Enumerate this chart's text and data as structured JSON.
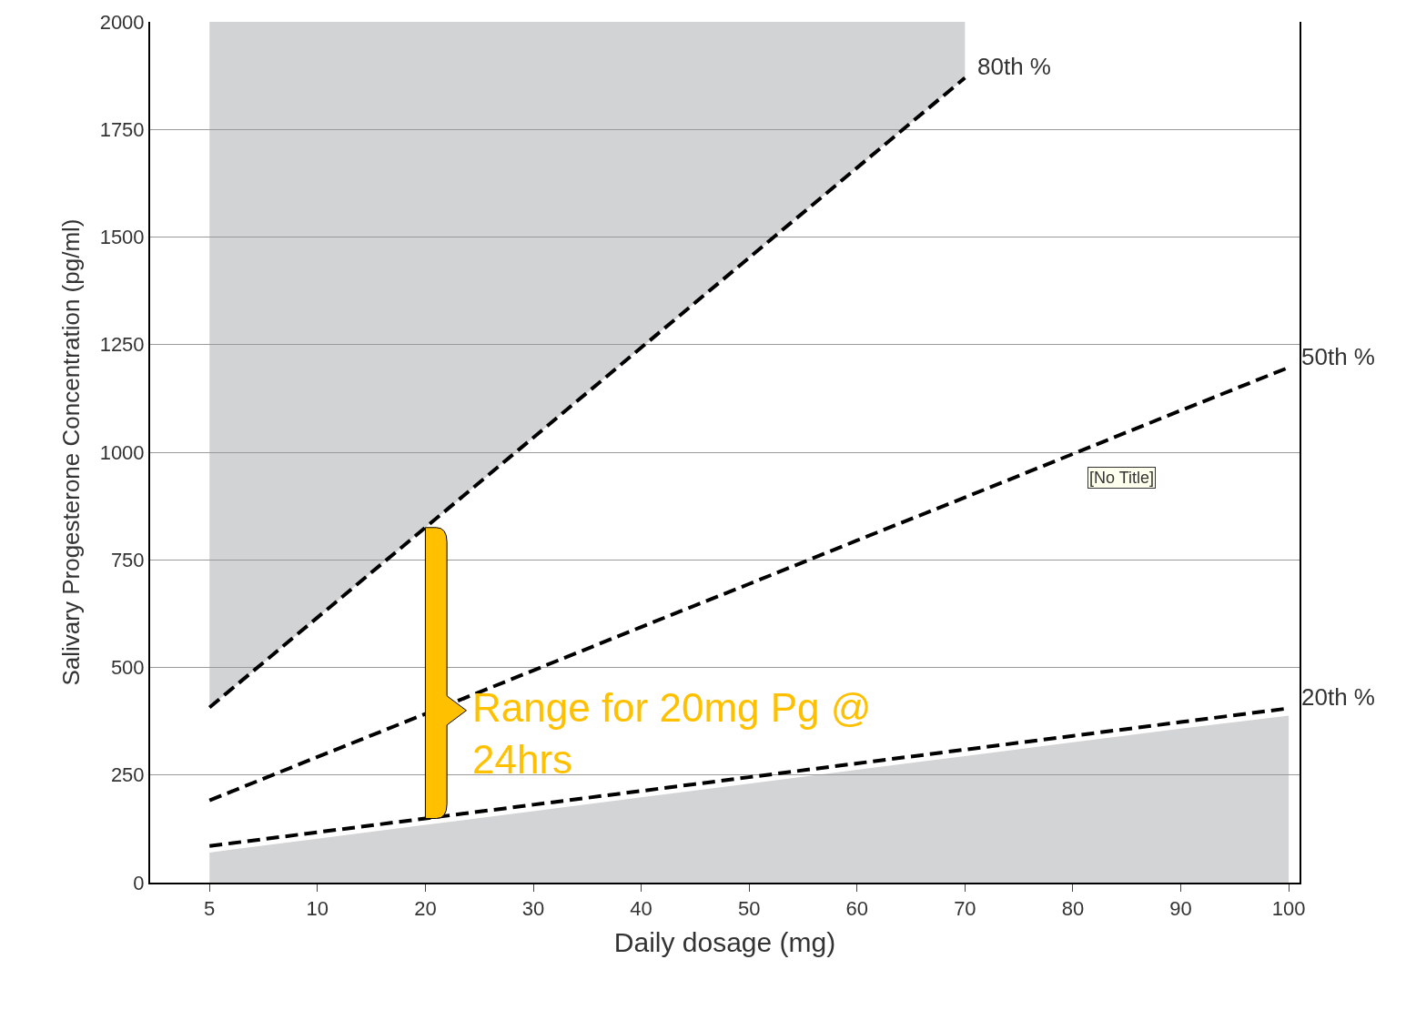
{
  "chart_data": {
    "type": "line",
    "xlabel": "Daily dosage (mg)",
    "ylabel": "Salivary Progesterone Concentration (pg/ml)",
    "categories": [
      "5",
      "10",
      "20",
      "30",
      "40",
      "50",
      "60",
      "70",
      "80",
      "90",
      "100"
    ],
    "ylim": [
      0,
      2000
    ],
    "yticks": [
      0,
      250,
      500,
      750,
      1000,
      1250,
      1500,
      1750,
      2000
    ],
    "grid": "y",
    "legend": false,
    "line_style": "dashed",
    "marker": "none",
    "series": [
      {
        "name": "80th %",
        "color": "#000000",
        "values": [
          407,
          616,
          825,
          1034,
          1243,
          1452,
          1661,
          1870,
          null,
          null,
          null
        ],
        "lower": [
          407,
          616,
          825,
          1034,
          1243,
          1452,
          1661,
          1870,
          null,
          null,
          null
        ],
        "upper": [
          2000,
          2000,
          2000,
          2000,
          2000,
          2000,
          2000,
          2000,
          null,
          null,
          null
        ]
      },
      {
        "name": "50th %",
        "color": "#000000",
        "values": [
          191,
          292,
          392,
          493,
          594,
          694,
          795,
          895,
          996,
          1097,
          1197
        ]
      },
      {
        "name": "20th %",
        "color": "#000000",
        "values": [
          85,
          117,
          149,
          181,
          213,
          245,
          277,
          309,
          341,
          373,
          405
        ],
        "lower": [
          0,
          0,
          0,
          0,
          0,
          0,
          0,
          0,
          0,
          0,
          0
        ],
        "upper": [
          70,
          102,
          134,
          166,
          198,
          230,
          262,
          294,
          326,
          358,
          388
        ]
      }
    ],
    "annotations": [
      {
        "text": "Range for 20mg Pg @ 24hrs",
        "x": "20",
        "y": 400
      },
      "[No Title]"
    ]
  }
}
